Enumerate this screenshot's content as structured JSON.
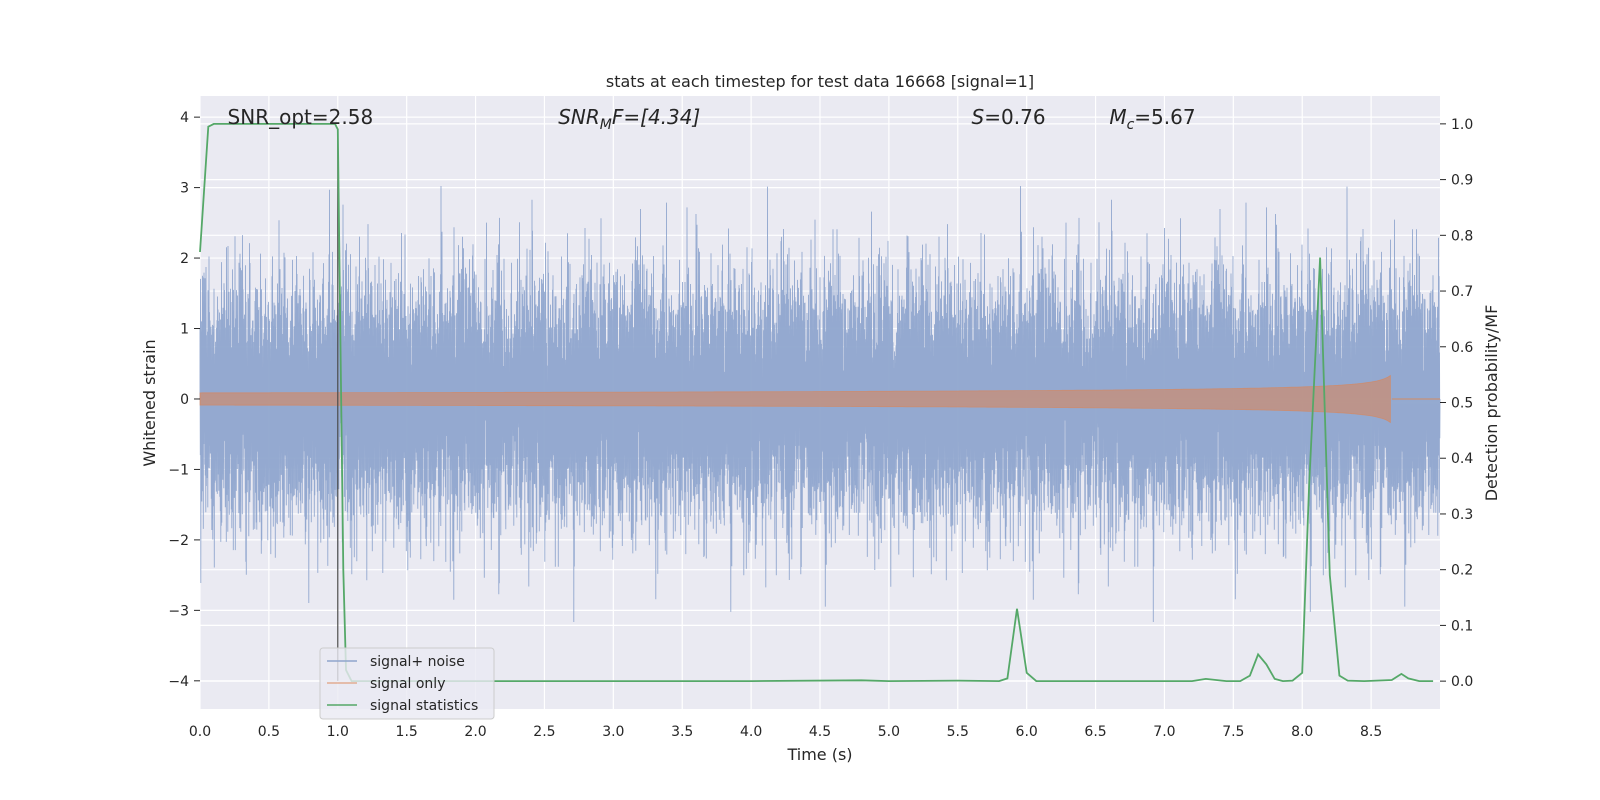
{
  "chart_data": {
    "type": "line",
    "title": "stats at each timestep for test data 16668 [signal=1]",
    "xlabel": "Time (s)",
    "ylabel": "Whitened strain",
    "y2label": "Detection probability/MF",
    "xlim": [
      0.0,
      9.0
    ],
    "ylim": [
      -4.4,
      4.3
    ],
    "y2lim": [
      -0.05,
      1.05
    ],
    "xticks": [
      "0.0",
      "0.5",
      "1.0",
      "1.5",
      "2.0",
      "2.5",
      "3.0",
      "3.5",
      "4.0",
      "4.5",
      "5.0",
      "5.5",
      "6.0",
      "6.5",
      "7.0",
      "7.5",
      "8.0",
      "8.5"
    ],
    "yticks": [
      "4",
      "3",
      "2",
      "1",
      "0",
      "−1",
      "−2",
      "−3",
      "−4"
    ],
    "y2ticks": [
      "1.0",
      "0.9",
      "0.8",
      "0.7",
      "0.6",
      "0.5",
      "0.4",
      "0.3",
      "0.2",
      "0.1",
      "0.0"
    ],
    "grid": true,
    "legend_position": "lower-left",
    "annotations": [
      {
        "base": "SNR_opt=2.58",
        "sub": "",
        "rest": "",
        "x": 0.2
      },
      {
        "base": "SNR",
        "sub": "M",
        "rest": "F=[4.34]",
        "x": 2.6
      },
      {
        "base": "S",
        "sub": "",
        "rest": "=0.76",
        "x": 5.6
      },
      {
        "base": "M",
        "sub": "c",
        "rest": "=5.67",
        "x": 6.6
      }
    ],
    "annotation_y": 4.0,
    "vline_x": 1.0,
    "series": [
      {
        "name": "signal+ noise",
        "color": "#8fa5cd",
        "kind": "noise",
        "duration": 9.0,
        "typical_amplitude": 2.0,
        "peak_amplitude": 3.9
      },
      {
        "name": "signal only",
        "color": "#dd8452",
        "kind": "chirp",
        "start": 0.0,
        "end": 8.65,
        "peak_amplitude": 0.35
      },
      {
        "name": "signal statistics",
        "color": "#55a868",
        "kind": "line",
        "x": [
          0.0,
          0.06,
          0.1,
          0.2,
          0.5,
          0.9,
          0.98,
          1.0,
          1.02,
          1.04,
          1.06,
          1.1,
          1.2,
          2.0,
          3.0,
          4.0,
          4.8,
          5.0,
          5.5,
          5.8,
          5.86,
          5.93,
          6.0,
          6.07,
          6.5,
          7.0,
          7.2,
          7.3,
          7.45,
          7.55,
          7.62,
          7.68,
          7.74,
          7.8,
          7.86,
          7.93,
          8.0,
          8.05,
          8.13,
          8.2,
          8.27,
          8.33,
          8.45,
          8.65,
          8.72,
          8.77,
          8.85,
          8.95
        ],
        "y": [
          0.77,
          0.995,
          1.0,
          1.0,
          1.0,
          1.0,
          1.0,
          0.99,
          0.6,
          0.2,
          0.02,
          0.0,
          0.0,
          0.0,
          0.0,
          0.0,
          0.0015,
          0.0,
          0.001,
          0.0,
          0.005,
          0.13,
          0.015,
          0.0,
          0.0,
          0.0,
          0.0,
          0.004,
          0.0,
          0.0,
          0.01,
          0.048,
          0.03,
          0.004,
          0.0,
          0.001,
          0.015,
          0.35,
          0.76,
          0.19,
          0.01,
          0.001,
          0.0,
          0.002,
          0.013,
          0.005,
          0.0,
          0.0
        ]
      }
    ]
  }
}
